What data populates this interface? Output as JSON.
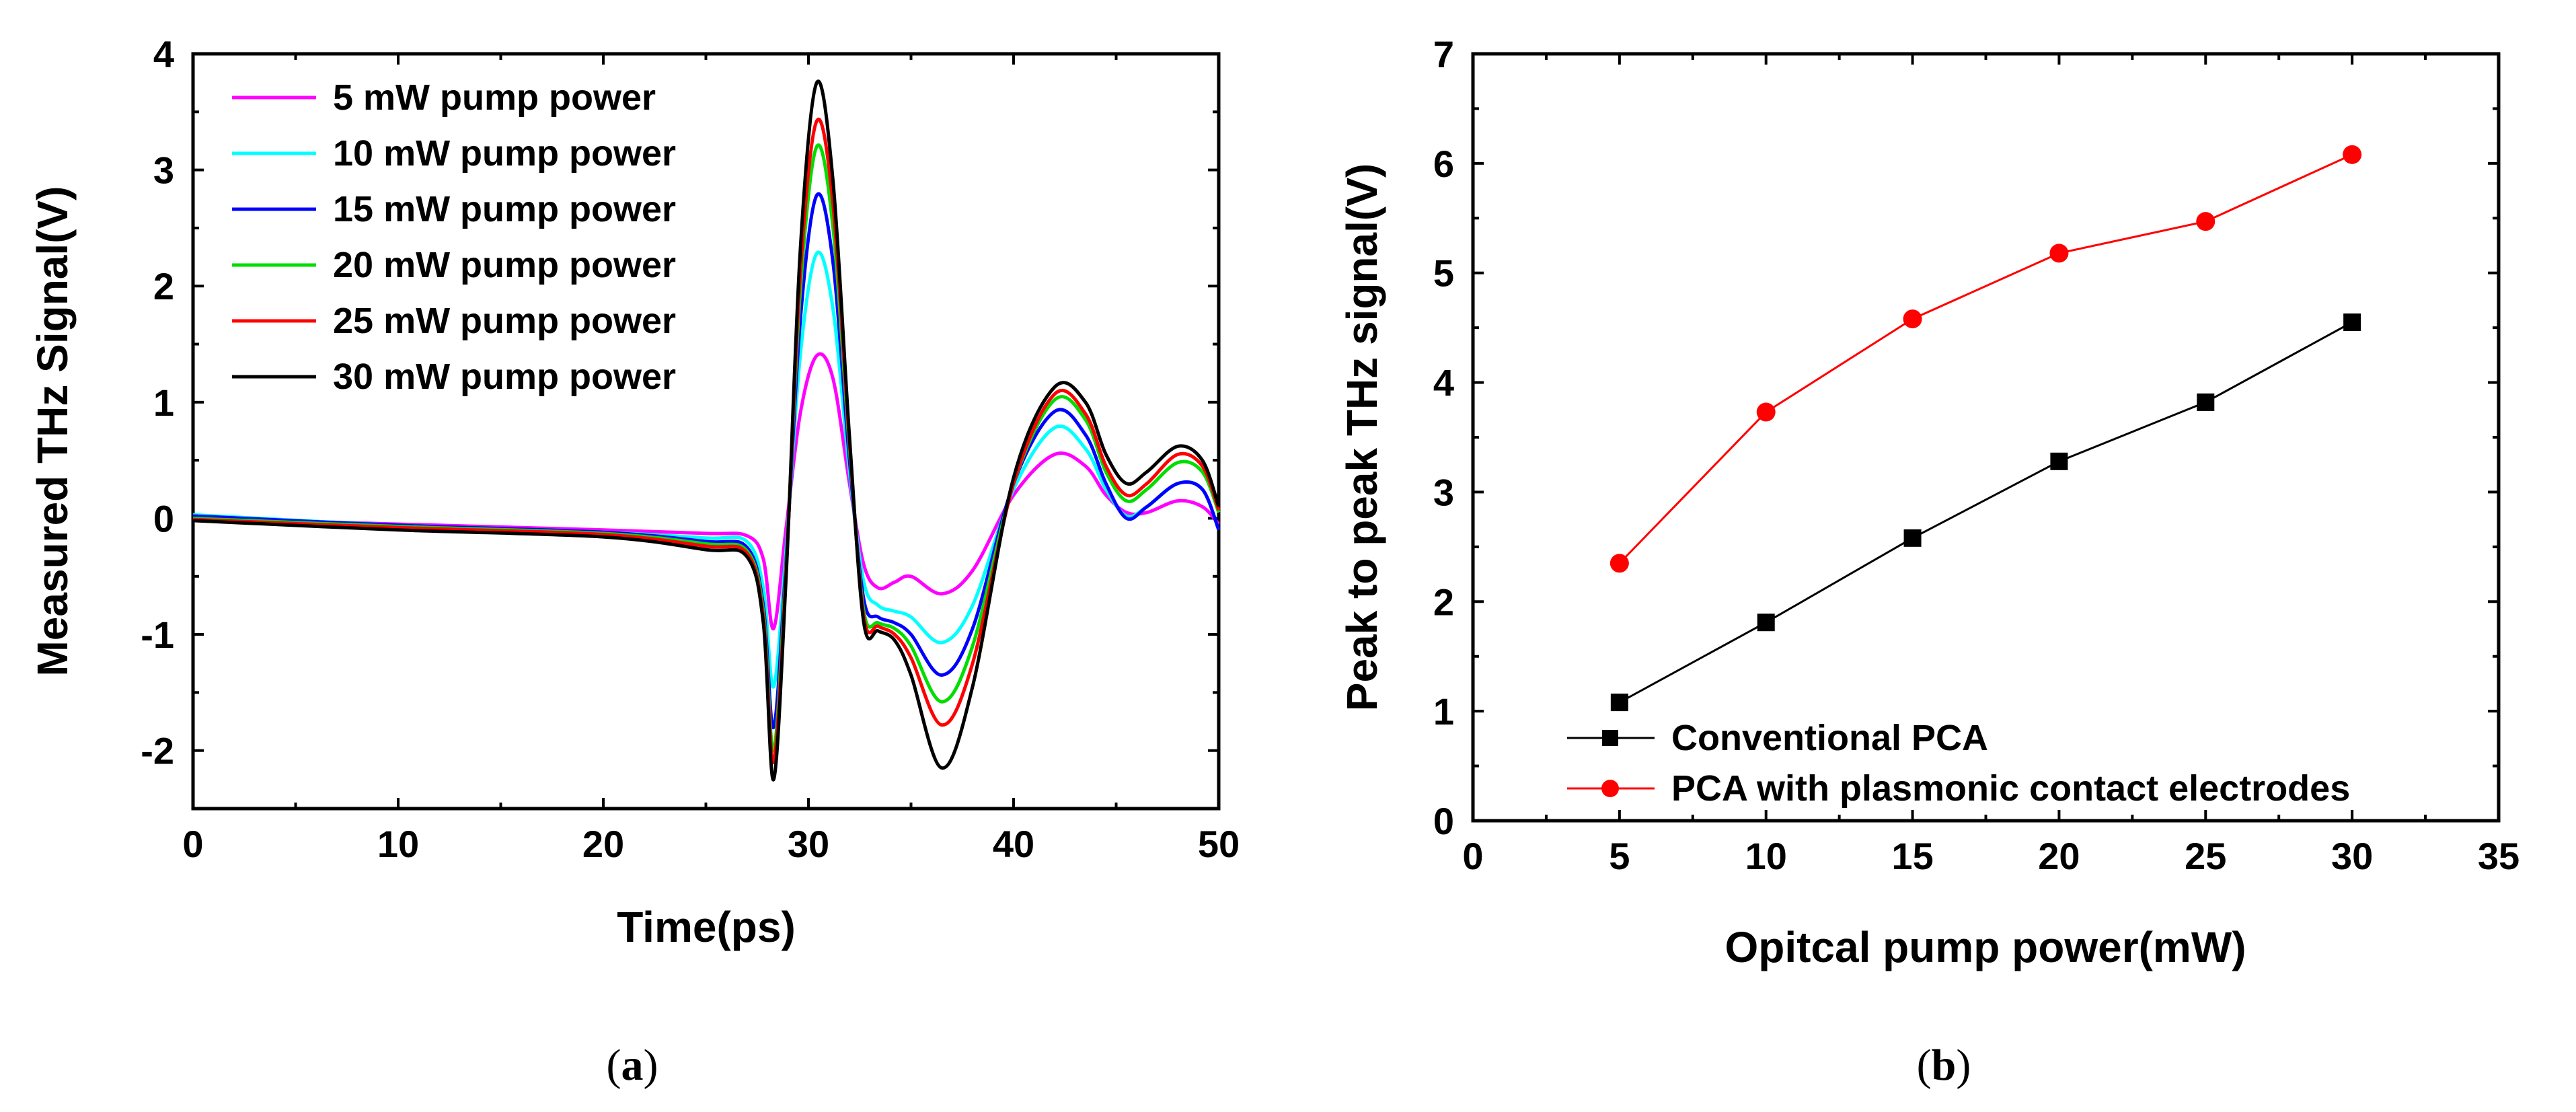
{
  "chart_data": [
    {
      "type": "line",
      "panel_label": "a",
      "title": "",
      "xlabel": "Time(ps)",
      "ylabel": "Measured THz Signal(V)",
      "xlim": [
        0,
        50
      ],
      "ylim": [
        -2.5,
        4
      ],
      "xticks": [
        0,
        10,
        20,
        30,
        40,
        50
      ],
      "yticks": [
        -2,
        -1,
        0,
        1,
        2,
        3,
        4
      ],
      "legend": "top-left",
      "series": [
        {
          "name": "5 mW pump power",
          "color": "#ff00ff",
          "x": [
            0,
            10,
            20,
            25,
            27,
            27.8,
            28.3,
            28.9,
            29.6,
            30.4,
            31.2,
            32,
            32.7,
            33.4,
            34.2,
            35,
            36.5,
            38,
            40,
            42,
            43.5,
            44.5,
            45.5,
            46.5,
            48,
            49.2,
            50
          ],
          "y": [
            0,
            -0.05,
            -0.1,
            -0.13,
            -0.15,
            -0.35,
            -0.95,
            -0.1,
            0.9,
            1.4,
            1.2,
            0.3,
            -0.4,
            -0.6,
            -0.55,
            -0.5,
            -0.65,
            -0.45,
            0.2,
            0.55,
            0.45,
            0.2,
            0.05,
            0.05,
            0.15,
            0.1,
            -0.05
          ]
        },
        {
          "name": "10 mW pump power",
          "color": "#00ffff",
          "x": [
            0,
            10,
            20,
            25,
            27,
            27.8,
            28.3,
            28.9,
            29.6,
            30.4,
            31.2,
            32,
            32.7,
            33.4,
            34.2,
            35,
            36.5,
            38,
            40,
            42,
            43.5,
            44.5,
            45.5,
            46.5,
            48,
            49.2,
            50
          ],
          "y": [
            0.03,
            -0.06,
            -0.12,
            -0.17,
            -0.2,
            -0.6,
            -1.45,
            -0.3,
            1.4,
            2.28,
            1.8,
            0.4,
            -0.55,
            -0.75,
            -0.8,
            -0.85,
            -1.07,
            -0.75,
            0.25,
            0.78,
            0.6,
            0.25,
            0.02,
            0.1,
            0.3,
            0.25,
            -0.1
          ]
        },
        {
          "name": "15 mW pump power",
          "color": "#0000ff",
          "x": [
            0,
            10,
            20,
            25,
            27,
            27.8,
            28.3,
            28.9,
            29.6,
            30.4,
            31.2,
            32,
            32.7,
            33.4,
            34.2,
            35,
            36.5,
            38,
            40,
            42,
            43.5,
            44.5,
            45.5,
            46.5,
            48,
            49.2,
            50
          ],
          "y": [
            0.02,
            -0.06,
            -0.12,
            -0.2,
            -0.25,
            -0.75,
            -1.8,
            -0.4,
            1.7,
            2.78,
            2.2,
            0.5,
            -0.7,
            -0.85,
            -0.9,
            -1.0,
            -1.35,
            -0.95,
            0.3,
            0.92,
            0.72,
            0.3,
            0.0,
            0.1,
            0.3,
            0.25,
            -0.1
          ]
        },
        {
          "name": "20 mW pump power",
          "color": "#00dd00",
          "x": [
            0,
            10,
            20,
            25,
            27,
            27.8,
            28.3,
            28.9,
            29.6,
            30.4,
            31.2,
            32,
            32.7,
            33.4,
            34.2,
            35,
            36.5,
            38,
            40,
            42,
            43.5,
            44.5,
            45.5,
            46.5,
            48,
            49.2,
            50
          ],
          "y": [
            0,
            -0.07,
            -0.13,
            -0.22,
            -0.28,
            -0.8,
            -2.0,
            -0.45,
            1.95,
            3.2,
            2.5,
            0.6,
            -0.8,
            -0.9,
            -0.95,
            -1.1,
            -1.58,
            -1.1,
            0.3,
            1.02,
            0.85,
            0.4,
            0.15,
            0.25,
            0.48,
            0.4,
            0.05
          ]
        },
        {
          "name": "25 mW pump power",
          "color": "#ff0000",
          "x": [
            0,
            10,
            20,
            25,
            27,
            27.8,
            28.3,
            28.9,
            29.6,
            30.4,
            31.2,
            32,
            32.7,
            33.4,
            34.2,
            35,
            36.5,
            38,
            40,
            42,
            43.5,
            44.5,
            45.5,
            46.5,
            48,
            49.2,
            50
          ],
          "y": [
            -0.01,
            -0.08,
            -0.14,
            -0.24,
            -0.3,
            -0.85,
            -2.1,
            -0.5,
            2.1,
            3.42,
            2.7,
            0.65,
            -0.85,
            -0.93,
            -1.0,
            -1.2,
            -1.78,
            -1.25,
            0.3,
            1.07,
            0.9,
            0.45,
            0.2,
            0.3,
            0.55,
            0.45,
            0.07
          ]
        },
        {
          "name": "30 mW pump power",
          "color": "#000000",
          "x": [
            0,
            10,
            20,
            25,
            27,
            27.8,
            28.3,
            28.9,
            29.6,
            30.4,
            31.2,
            32,
            32.7,
            33.4,
            34.2,
            35,
            36.5,
            38,
            40,
            42,
            43.5,
            44.5,
            45.5,
            46.5,
            48,
            49.2,
            50
          ],
          "y": [
            -0.02,
            -0.1,
            -0.16,
            -0.27,
            -0.33,
            -0.9,
            -2.25,
            -0.55,
            2.3,
            3.75,
            2.9,
            0.7,
            -0.9,
            -0.97,
            -1.05,
            -1.35,
            -2.15,
            -1.45,
            0.35,
            1.13,
            1.0,
            0.55,
            0.3,
            0.4,
            0.62,
            0.5,
            0.1
          ]
        }
      ]
    },
    {
      "type": "line",
      "panel_label": "b",
      "title": "",
      "xlabel": "Opitcal pump power(mW)",
      "ylabel": "Peak to peak THz signal(V)",
      "xlim": [
        0,
        35
      ],
      "ylim": [
        0,
        7
      ],
      "xticks": [
        0,
        5,
        10,
        15,
        20,
        25,
        30,
        35
      ],
      "yticks": [
        0,
        1,
        2,
        3,
        4,
        5,
        6,
        7
      ],
      "legend": "bottom-left",
      "x": [
        5,
        10,
        15,
        20,
        25,
        30
      ],
      "series": [
        {
          "name": "Conventional PCA",
          "color": "#000000",
          "marker": "square",
          "values": [
            1.08,
            1.81,
            2.58,
            3.28,
            3.82,
            4.55
          ]
        },
        {
          "name": "PCA with plasmonic contact electrodes",
          "color": "#ff0000",
          "marker": "circle",
          "values": [
            2.35,
            3.73,
            4.58,
            5.18,
            5.47,
            6.08
          ]
        }
      ]
    }
  ],
  "captions": {
    "a": "a",
    "b": "b"
  }
}
